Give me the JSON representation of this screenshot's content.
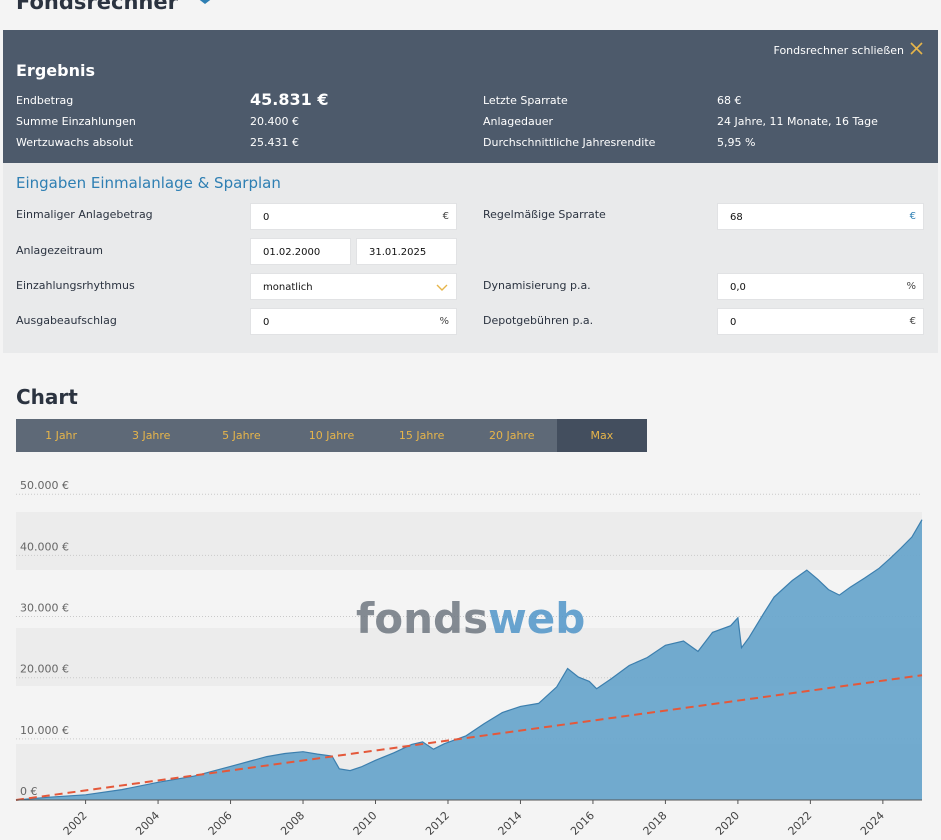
{
  "page": {
    "title": "Fondsrechner"
  },
  "result": {
    "heading": "Ergebnis",
    "close_label": "Fondsrechner schließen",
    "rows_left": [
      {
        "label": "Endbetrag",
        "value": "45.831 €"
      },
      {
        "label": "Summe Einzahlungen",
        "value": "20.400 €"
      },
      {
        "label": "Wertzuwachs absolut",
        "value": "25.431 €"
      }
    ],
    "rows_right": [
      {
        "label": "Letzte Sparrate",
        "value": "68 €"
      },
      {
        "label": "Anlagedauer",
        "value": "24 Jahre, 11 Monate, 16 Tage"
      },
      {
        "label": "Durchschnittliche Jahresrendite",
        "value": "5,95 %"
      }
    ]
  },
  "inputs": {
    "heading": "Eingaben Einmalanlage & Sparplan",
    "einmal": {
      "label": "Einmaliger Anlagebetrag",
      "value": "0",
      "unit": "€"
    },
    "zeitraum": {
      "label": "Anlagezeitraum",
      "from": "01.02.2000",
      "to": "31.01.2025"
    },
    "rhythmus": {
      "label": "Einzahlungsrhythmus",
      "value": "monatlich"
    },
    "aufschlag": {
      "label": "Ausgabeaufschlag",
      "value": "0",
      "unit": "%"
    },
    "sparrate": {
      "label": "Regelmäßige Sparrate",
      "value": "68",
      "unit": "€"
    },
    "dynamik": {
      "label": "Dynamisierung p.a.",
      "value": "0,0",
      "unit": "%"
    },
    "depot": {
      "label": "Depotgebühren p.a.",
      "value": "0",
      "unit": "€"
    }
  },
  "chart_section": {
    "heading": "Chart",
    "tabs": [
      "1 Jahr",
      "3 Jahre",
      "5 Jahre",
      "10 Jahre",
      "15 Jahre",
      "20 Jahre",
      "Max"
    ],
    "active_tab": "Max",
    "watermark_a": "fonds",
    "watermark_b": "web"
  },
  "colors": {
    "area": "#6aa7cc",
    "area_line": "#3c7fae",
    "dashed": "#e4583a",
    "accent": "#e7b54a",
    "header_bg": "#4d5a6b"
  },
  "chart_data": {
    "type": "area",
    "ylim": [
      0,
      52000
    ],
    "y_ticks": [
      "0 €",
      "10.000 €",
      "20.000 €",
      "30.000 €",
      "40.000 €",
      "50.000 €"
    ],
    "y_tick_values": [
      0,
      10000,
      20000,
      30000,
      40000,
      50000
    ],
    "x_ticks": [
      "2002",
      "2004",
      "2006",
      "2008",
      "2010",
      "2012",
      "2014",
      "2016",
      "2018",
      "2020",
      "2022",
      "2024"
    ],
    "x_range": [
      2000.08,
      2025.08
    ],
    "grid": true,
    "series": [
      {
        "name": "",
        "kind": "area",
        "x": [
          2000.08,
          2001.0,
          2002.0,
          2003.0,
          2004.0,
          2005.0,
          2006.0,
          2006.5,
          2007.0,
          2007.5,
          2008.0,
          2008.4,
          2008.8,
          2009.0,
          2009.3,
          2009.6,
          2010.0,
          2010.5,
          2011.0,
          2011.3,
          2011.6,
          2011.9,
          2012.5,
          2013.0,
          2013.5,
          2014.0,
          2014.5,
          2015.0,
          2015.3,
          2015.6,
          2015.9,
          2016.1,
          2016.5,
          2017.0,
          2017.5,
          2018.0,
          2018.5,
          2018.9,
          2019.3,
          2019.8,
          2020.0,
          2020.1,
          2020.3,
          2020.7,
          2021.0,
          2021.5,
          2021.9,
          2022.2,
          2022.5,
          2022.8,
          2023.1,
          2023.5,
          2023.9,
          2024.2,
          2024.5,
          2024.8,
          2025.08
        ],
        "values": [
          0,
          450,
          850,
          1700,
          2900,
          3900,
          5500,
          6300,
          7100,
          7600,
          7900,
          7500,
          7200,
          5100,
          4800,
          5400,
          6500,
          7700,
          9100,
          9500,
          8300,
          9200,
          10500,
          12500,
          14300,
          15300,
          15800,
          18500,
          21500,
          20100,
          19400,
          18200,
          19800,
          22000,
          23300,
          25300,
          26000,
          24300,
          27400,
          28500,
          29800,
          24900,
          26500,
          30400,
          33200,
          35900,
          37600,
          36100,
          34400,
          33500,
          34800,
          36300,
          37900,
          39500,
          41200,
          43000,
          45831
        ]
      },
      {
        "name": "",
        "kind": "dashed",
        "x": [
          2000.08,
          2025.08
        ],
        "values": [
          0,
          20400
        ]
      }
    ]
  }
}
